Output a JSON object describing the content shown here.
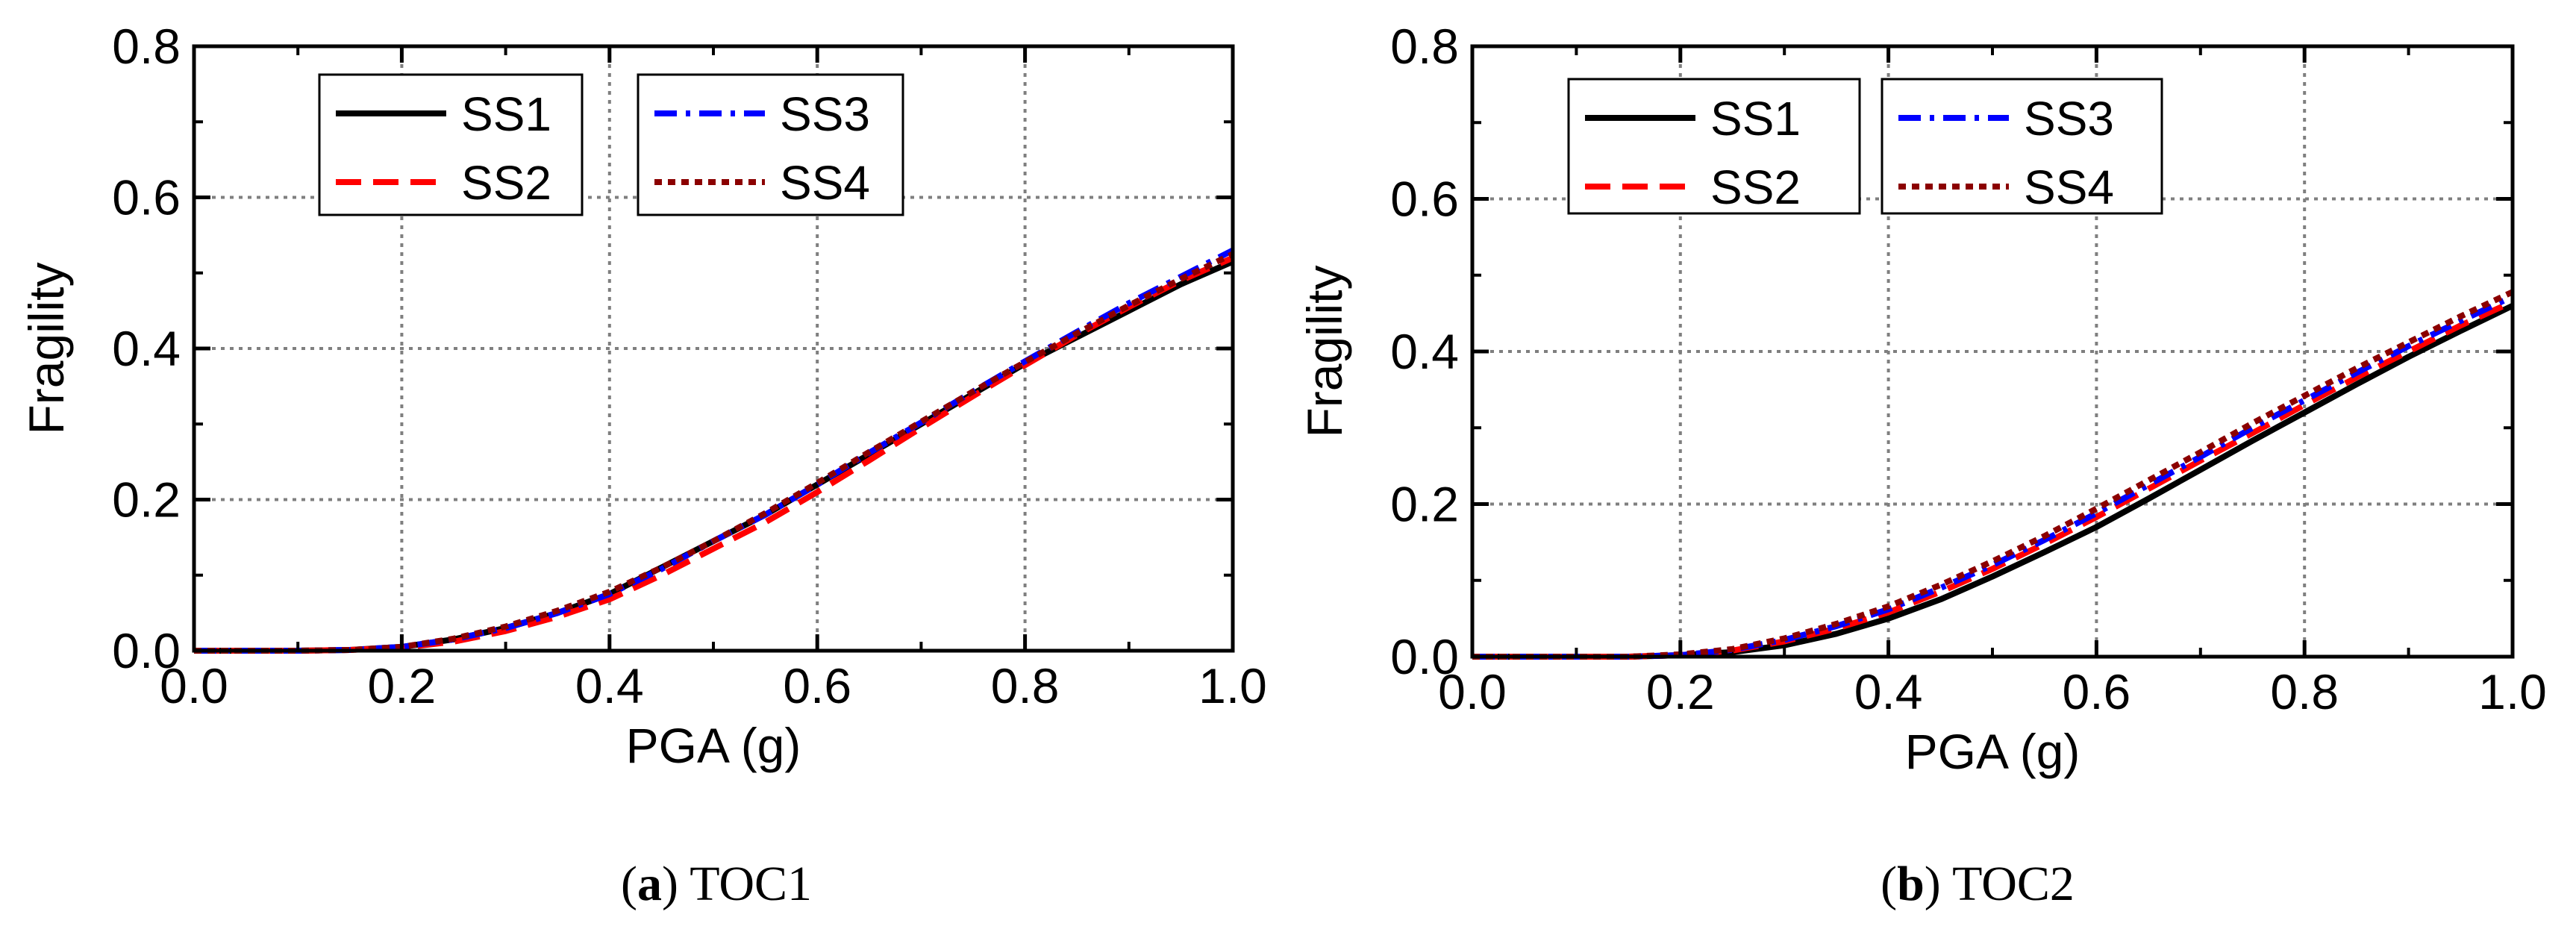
{
  "colors": {
    "ss1": "#000000",
    "ss2": "#ff0000",
    "ss3": "#0000ff",
    "ss4": "#8b0000",
    "grid": "#7f7f7f"
  },
  "legend_labels": [
    "SS1",
    "SS2",
    "SS3",
    "SS4"
  ],
  "captions": [
    {
      "letter": "a",
      "text": "TOC1"
    },
    {
      "letter": "b",
      "text": "TOC2"
    }
  ],
  "chart_data": [
    {
      "type": "line",
      "title": "(a) TOC1",
      "xlabel": "PGA (g)",
      "ylabel": "Fragility",
      "xlim": [
        0.0,
        1.0
      ],
      "ylim": [
        0.0,
        0.8
      ],
      "xticks": [
        "0.0",
        "0.2",
        "0.4",
        "0.6",
        "0.8",
        "1.0"
      ],
      "yticks": [
        "0.0",
        "0.2",
        "0.4",
        "0.6",
        "0.8"
      ],
      "grid": true,
      "legend_position": "top-left",
      "x": [
        0.0,
        0.1,
        0.15,
        0.2,
        0.25,
        0.3,
        0.35,
        0.4,
        0.45,
        0.5,
        0.55,
        0.6,
        0.65,
        0.7,
        0.75,
        0.8,
        0.85,
        0.9,
        0.95,
        1.0
      ],
      "series": [
        {
          "name": "SS1",
          "style": "solid",
          "values": [
            0.0,
            0.0,
            0.001,
            0.005,
            0.015,
            0.03,
            0.05,
            0.075,
            0.11,
            0.145,
            0.18,
            0.22,
            0.26,
            0.3,
            0.34,
            0.38,
            0.415,
            0.45,
            0.485,
            0.515
          ]
        },
        {
          "name": "SS2",
          "style": "dashed",
          "values": [
            0.0,
            0.0,
            0.001,
            0.004,
            0.012,
            0.026,
            0.045,
            0.068,
            0.1,
            0.135,
            0.17,
            0.21,
            0.252,
            0.295,
            0.337,
            0.378,
            0.418,
            0.455,
            0.49,
            0.52
          ]
        },
        {
          "name": "SS3",
          "style": "dashdot",
          "values": [
            0.0,
            0.0,
            0.001,
            0.005,
            0.015,
            0.03,
            0.05,
            0.075,
            0.108,
            0.145,
            0.18,
            0.22,
            0.262,
            0.302,
            0.343,
            0.383,
            0.422,
            0.46,
            0.495,
            0.53
          ]
        },
        {
          "name": "SS4",
          "style": "dotted",
          "values": [
            0.0,
            0.0,
            0.001,
            0.005,
            0.016,
            0.032,
            0.053,
            0.078,
            0.11,
            0.145,
            0.182,
            0.222,
            0.263,
            0.303,
            0.343,
            0.382,
            0.42,
            0.457,
            0.492,
            0.525
          ]
        }
      ]
    },
    {
      "type": "line",
      "title": "(b) TOC2",
      "xlabel": "PGA (g)",
      "ylabel": "Fragility",
      "xlim": [
        0.0,
        1.0
      ],
      "ylim": [
        0.0,
        0.8
      ],
      "xticks": [
        "0.0",
        "0.2",
        "0.4",
        "0.6",
        "0.8",
        "1.0"
      ],
      "yticks": [
        "0.0",
        "0.2",
        "0.4",
        "0.6",
        "0.8"
      ],
      "grid": true,
      "legend_position": "top-left",
      "x": [
        0.0,
        0.1,
        0.15,
        0.2,
        0.25,
        0.3,
        0.35,
        0.4,
        0.45,
        0.5,
        0.55,
        0.6,
        0.65,
        0.7,
        0.75,
        0.8,
        0.85,
        0.9,
        0.95,
        1.0
      ],
      "series": [
        {
          "name": "SS1",
          "style": "solid",
          "values": [
            0.0,
            0.0,
            0.0,
            0.002,
            0.006,
            0.015,
            0.03,
            0.05,
            0.075,
            0.105,
            0.137,
            0.17,
            0.207,
            0.245,
            0.283,
            0.32,
            0.357,
            0.393,
            0.427,
            0.46
          ]
        },
        {
          "name": "SS2",
          "style": "dashed",
          "values": [
            0.0,
            0.0,
            0.0,
            0.002,
            0.008,
            0.02,
            0.037,
            0.058,
            0.085,
            0.115,
            0.148,
            0.183,
            0.22,
            0.257,
            0.293,
            0.33,
            0.366,
            0.4,
            0.434,
            0.465
          ]
        },
        {
          "name": "SS3",
          "style": "dashdot",
          "values": [
            0.0,
            0.0,
            0.0,
            0.002,
            0.009,
            0.022,
            0.04,
            0.062,
            0.09,
            0.12,
            0.153,
            0.188,
            0.225,
            0.262,
            0.3,
            0.336,
            0.372,
            0.407,
            0.44,
            0.472
          ]
        },
        {
          "name": "SS4",
          "style": "dotted",
          "values": [
            0.0,
            0.0,
            0.0,
            0.003,
            0.01,
            0.024,
            0.043,
            0.066,
            0.094,
            0.125,
            0.158,
            0.194,
            0.231,
            0.268,
            0.306,
            0.342,
            0.378,
            0.412,
            0.446,
            0.478
          ]
        }
      ]
    }
  ]
}
